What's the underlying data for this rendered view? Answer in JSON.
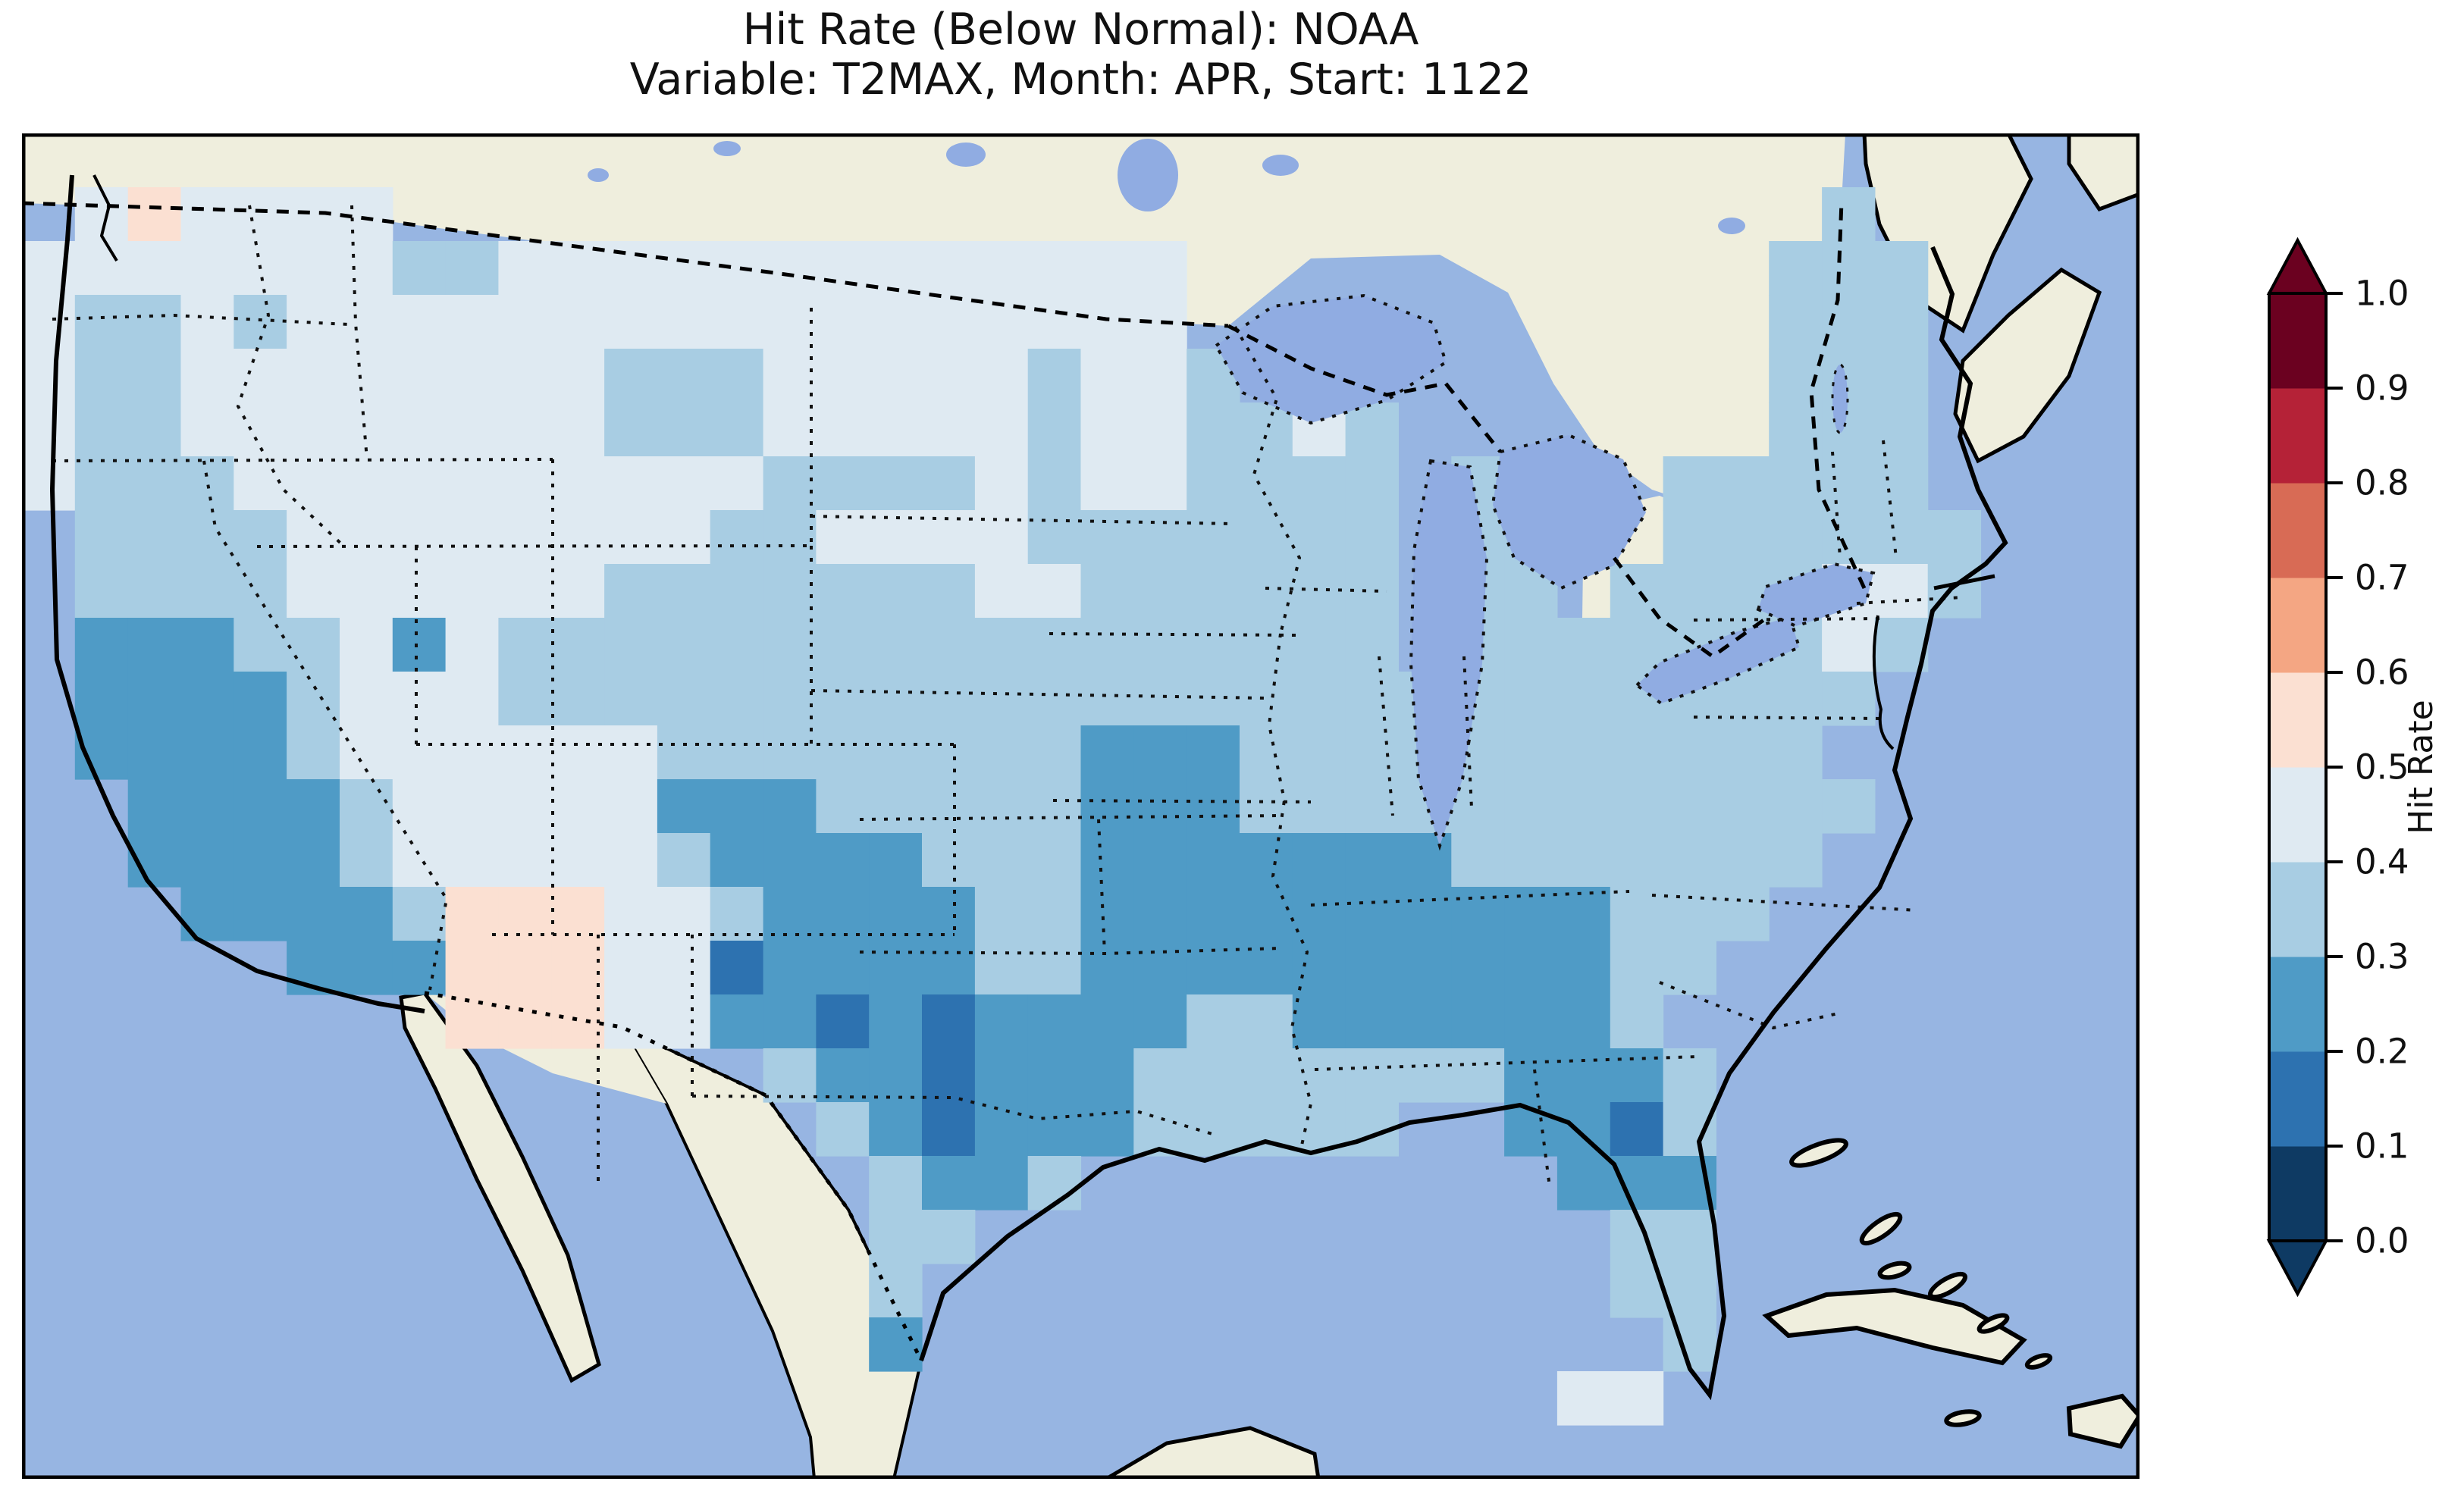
{
  "figure": {
    "title_line1": "Hit Rate (Below Normal): NOAA",
    "title_line2": "Variable: T2MAX, Month: APR, Start: 1122"
  },
  "colorbar": {
    "label": "Hit Rate",
    "tick_labels": [
      "0.0",
      "0.1",
      "0.2",
      "0.3",
      "0.4",
      "0.5",
      "0.6",
      "0.7",
      "0.8",
      "0.9",
      "1.0"
    ],
    "colors_bottom_to_top": [
      "#0e3a63",
      "#2d72b0",
      "#4f9bc6",
      "#a8cde3",
      "#dfeaf2",
      "#fbe0d2",
      "#f4a683",
      "#d86b55",
      "#b52237",
      "#6b0120"
    ],
    "extend_min_color": "#0e3a63",
    "extend_max_color": "#6b0120"
  },
  "map_colors": {
    "ocean": "#97b5e2",
    "land": "#efeedd",
    "lake": "#90ace2",
    "coastline": "#000000",
    "border": "#111111"
  },
  "chart_data": {
    "type": "heatmap",
    "title": "Hit Rate (Below Normal): NOAA",
    "subtitle": "Variable: T2MAX, Month: APR, Start: 1122",
    "variable": "T2MAX",
    "month": "APR",
    "start": "1122",
    "dataset": "NOAA",
    "colorbar_label": "Hit Rate",
    "value_range": [
      0.0,
      1.0
    ],
    "bin_size": 0.1,
    "legend_position": "right",
    "region": "Contiguous United States (cartopy-style map, ocean/land basemap)",
    "cell_legend": {
      "a": {
        "color": "#dfeaf2",
        "range": "0.4-0.5"
      },
      "b": {
        "color": "#a8cde3",
        "range": "0.3-0.4"
      },
      "c": {
        "color": "#4f9bc6",
        "range": "0.2-0.3"
      },
      "d": {
        "color": "#2d72b0",
        "range": "0.1-0.2"
      },
      "p": {
        "color": "#fbe0d2",
        "range": "0.5-0.6"
      }
    },
    "grid_cols": 40,
    "grid_rows_count": 25,
    "grid_rows": [
      "........................................",
      ".apaaaa...........................b.....",
      "aaaaaaabbaaaaaaaaaaaaa...........bbb....",
      "abbabaaaaaaaaaaaaaaaaa...........bbb....",
      "abbaaaaaaaabbbaaaaabaab..........bbb....",
      "abbaaaaaaaabbbaaaaabaabbab.......bbb....",
      "abbbaaaaaaaaaabbbbabaabbbb.bb..bbbbb....",
      ".bbbbaaaaaaaabbaaaabbbbbbb.bb..bbbbbb...",
      ".bbbbaaaaaabbbbbbbaabbbbbb.bb.bbbbaab...",
      ".cccbbacabbbbbbbbbbbbbbbbb.bbbbbbbab....",
      ".ccccbaaabbbbbbbbbbbbbbbbbbbbbbbbbb.....",
      ".ccccbaaaaaabbbbbbbbcccbbbbbbbbbbb......",
      "..ccccbaaaaacccbbbbbcccbbbbbbbbbbbb.....",
      "..ccccbaaaaabccccbbbcccccccbbbbbbb......",
      "...ccccbpppaabccccbbccccccccccbbb.......",
      ".....cccpppaadccccbbccccccccccbb........",
      "........pppaaccdcdccccbbccccccb.........",
      "..............bccdcccbbbbbbbcccb........",
      "...............bcdcccbbbbb..ccdb........",
      "................bccb.........ccc........",
      "................bb............bb........",
      "................b.............bb........",
      "................c..............b........",
      ".............................aa.........",
      "........................................"
    ],
    "regional_hit_rate_summary": {
      "pacific_northwest": "0.4-0.5",
      "california_central_and_south": "0.2-0.3",
      "great_basin_nevada": "0.3-0.4",
      "northern_rockies_and_plains": "0.4-0.5",
      "arizona_new_mexico_patch": "0.5-0.6",
      "colorado_kansas": "0.3-0.4",
      "texas_oklahoma": "0.2-0.3 with pockets 0.1-0.2",
      "lower_mississippi_tennessee_valley": "0.2-0.3",
      "southeast_alabama_georgia": "0.2-0.3",
      "florida_peninsula": "0.3-0.4 with pocket 0.1-0.2",
      "midwest_ohio_valley": "0.3-0.4",
      "upper_midwest_wisconsin_iowa": "0.4-0.5",
      "northeast_new_england": "0.3-0.4",
      "mid_atlantic": "0.3-0.4 with 0.4-0.5 patch"
    }
  }
}
